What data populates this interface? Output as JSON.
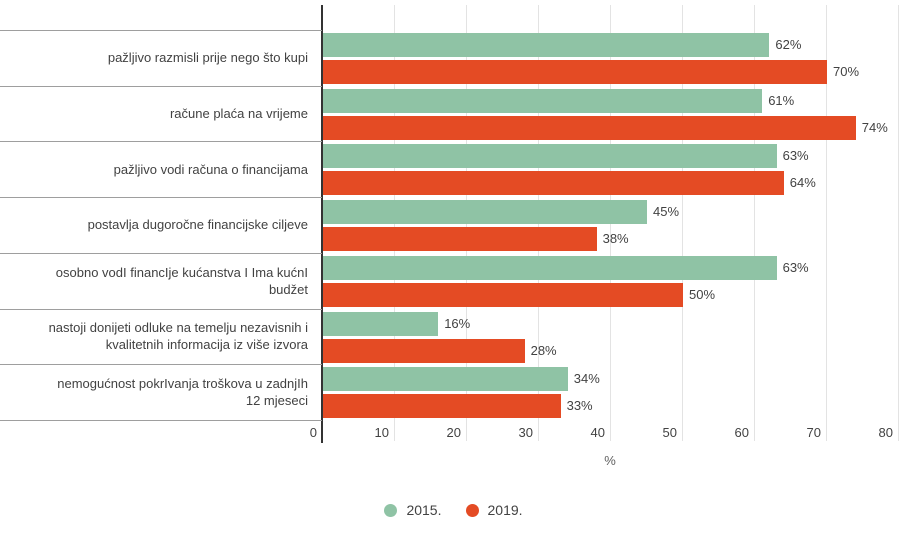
{
  "colors": {
    "series_2015": "#8fc3a5",
    "series_2019": "#e44b24",
    "axis_line": "#333333",
    "row_separator": "#9e9e9e",
    "gridline": "#e3e3e3",
    "text": "#424242"
  },
  "chart_data": {
    "type": "bar",
    "orientation": "horizontal",
    "categories": [
      "pažljivo razmisli prije nego što kupi",
      "račune plaća na vrijeme",
      "pažljivo vodi računa o financijama",
      "postavlja dugoročne financijske ciljeve",
      "osobno vodI financIje kućanstva I Ima kućnI\nbudžet",
      "nastoji donijeti odluke na temelju nezavisnih i\nkvalitetnih informacija iz više izvora",
      "nemogućnost pokrIvanja troškova u zadnjIh\n12 mjeseci"
    ],
    "series": [
      {
        "name": "2015.",
        "color": "#8fc3a5",
        "values": [
          62,
          61,
          63,
          45,
          63,
          16,
          34
        ],
        "display_labels": [
          "62%",
          "61%",
          "63%",
          "45%",
          "63%",
          "16%",
          "34%"
        ]
      },
      {
        "name": "2019.",
        "color": "#e44b24",
        "values": [
          70,
          74,
          64,
          38,
          50,
          28,
          33
        ],
        "display_labels": [
          "70%",
          "74%",
          "64%",
          "38%",
          "50%",
          "28%",
          "33%"
        ]
      }
    ],
    "xlabel": "%",
    "xlim": [
      0,
      80
    ],
    "xticks": [
      0,
      10,
      20,
      30,
      40,
      50,
      60,
      70,
      80
    ],
    "xtick_labels": [
      "0",
      "10",
      "20",
      "30",
      "40",
      "50",
      "60",
      "70",
      "80"
    ],
    "grid": true,
    "legend_position": "bottom"
  },
  "legend": {
    "items": [
      {
        "label": "2015.",
        "color": "#8fc3a5"
      },
      {
        "label": "2019.",
        "color": "#e44b24"
      }
    ]
  }
}
